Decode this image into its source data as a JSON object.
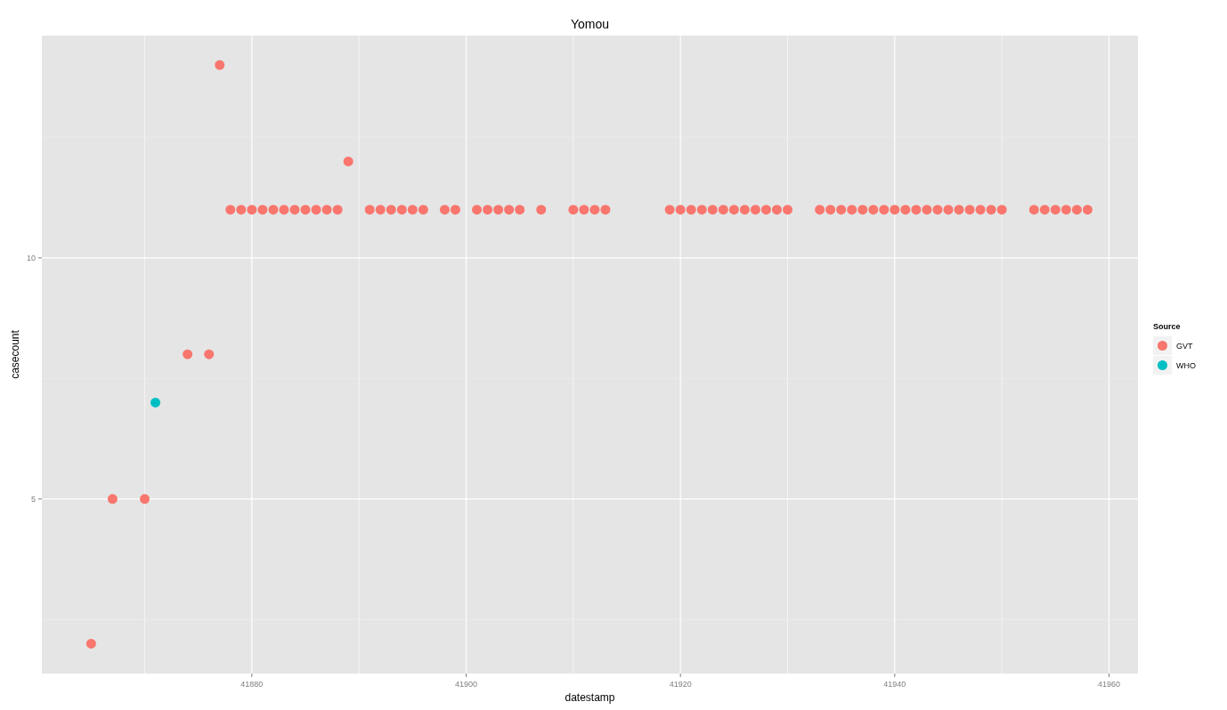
{
  "chart_data": {
    "type": "scatter",
    "title": "Yomou",
    "xlabel": "datestamp",
    "ylabel": "casecount",
    "legend_title": "Source",
    "xlim": [
      41860.4,
      41962.7
    ],
    "ylim": [
      1.38,
      14.61
    ],
    "xticks": [
      {
        "value": 41870,
        "label": null
      },
      41880,
      {
        "value": 41890,
        "label": null
      },
      41900,
      {
        "value": 41910,
        "label": null
      },
      41920,
      {
        "value": 41930,
        "label": null
      },
      41940,
      {
        "value": 41950,
        "label": null
      },
      41960
    ],
    "yticks": [
      {
        "value": 2.5,
        "label": null
      },
      5,
      {
        "value": 7.5,
        "label": null
      },
      10,
      {
        "value": 12.5,
        "label": null
      }
    ],
    "grid": true,
    "legend": "right",
    "marker": "circle",
    "series": [
      {
        "name": "GVT",
        "color": "#f8766d",
        "x": [
          41865,
          41867,
          41870,
          41874,
          41876,
          41877,
          41878,
          41879,
          41880,
          41881,
          41882,
          41883,
          41884,
          41885,
          41886,
          41887,
          41888,
          41889,
          41891,
          41892,
          41893,
          41894,
          41895,
          41896,
          41898,
          41899,
          41901,
          41902,
          41903,
          41904,
          41905,
          41907,
          41910,
          41911,
          41912,
          41913,
          41919,
          41920,
          41921,
          41922,
          41923,
          41924,
          41925,
          41926,
          41927,
          41928,
          41929,
          41930,
          41933,
          41934,
          41935,
          41936,
          41937,
          41938,
          41939,
          41940,
          41941,
          41942,
          41943,
          41944,
          41945,
          41946,
          41947,
          41948,
          41949,
          41950,
          41953,
          41954,
          41955,
          41956,
          41957,
          41958
        ],
        "values": [
          2,
          5,
          5,
          8,
          8,
          14,
          11,
          11,
          11,
          11,
          11,
          11,
          11,
          11,
          11,
          11,
          11,
          12,
          11,
          11,
          11,
          11,
          11,
          11,
          11,
          11,
          11,
          11,
          11,
          11,
          11,
          11,
          11,
          11,
          11,
          11,
          11,
          11,
          11,
          11,
          11,
          11,
          11,
          11,
          11,
          11,
          11,
          11,
          11,
          11,
          11,
          11,
          11,
          11,
          11,
          11,
          11,
          11,
          11,
          11,
          11,
          11,
          11,
          11,
          11,
          11,
          11,
          11,
          11,
          11,
          11,
          11
        ]
      },
      {
        "name": "WHO",
        "color": "#00bfc4",
        "x": [
          41871
        ],
        "values": [
          7
        ]
      }
    ]
  }
}
